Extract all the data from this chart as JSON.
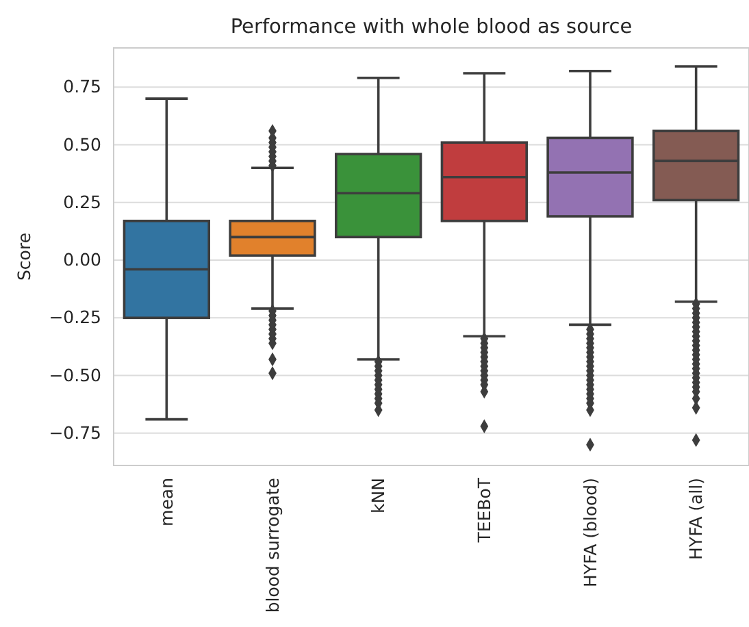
{
  "chart_data": {
    "type": "box",
    "title": "Performance with whole blood as source",
    "ylabel": "Score",
    "categories": [
      "mean",
      "blood surrogate",
      "kNN",
      "TEEBoT",
      "HYFA (blood)",
      "HYFA (all)"
    ],
    "colors": [
      "#3274a1",
      "#e1812c",
      "#3a923a",
      "#c03d3e",
      "#9372b2",
      "#845b53"
    ],
    "boxes": [
      {
        "low": -0.69,
        "q1": -0.25,
        "median": -0.04,
        "q3": 0.17,
        "high": 0.7
      },
      {
        "low": -0.21,
        "q1": 0.02,
        "median": 0.1,
        "q3": 0.17,
        "high": 0.4,
        "outliers": [
          0.41,
          0.43,
          0.45,
          0.47,
          0.49,
          0.51,
          0.53,
          0.56,
          -0.22,
          -0.24,
          -0.26,
          -0.28,
          -0.3,
          -0.32,
          -0.34,
          -0.36,
          -0.43,
          -0.49
        ]
      },
      {
        "low": -0.43,
        "q1": 0.1,
        "median": 0.29,
        "q3": 0.46,
        "high": 0.79,
        "outliers": [
          -0.44,
          -0.46,
          -0.48,
          -0.5,
          -0.52,
          -0.54,
          -0.56,
          -0.58,
          -0.6,
          -0.62,
          -0.65
        ]
      },
      {
        "low": -0.33,
        "q1": 0.17,
        "median": 0.36,
        "q3": 0.51,
        "high": 0.81,
        "outliers": [
          -0.34,
          -0.36,
          -0.38,
          -0.4,
          -0.42,
          -0.44,
          -0.46,
          -0.48,
          -0.5,
          -0.52,
          -0.54,
          -0.57,
          -0.72
        ]
      },
      {
        "low": -0.28,
        "q1": 0.19,
        "median": 0.38,
        "q3": 0.53,
        "high": 0.82,
        "outliers": [
          -0.3,
          -0.32,
          -0.34,
          -0.36,
          -0.38,
          -0.4,
          -0.42,
          -0.44,
          -0.46,
          -0.48,
          -0.5,
          -0.52,
          -0.54,
          -0.56,
          -0.58,
          -0.6,
          -0.62,
          -0.65,
          -0.8
        ]
      },
      {
        "low": -0.18,
        "q1": 0.26,
        "median": 0.43,
        "q3": 0.56,
        "high": 0.84,
        "outliers": [
          -0.19,
          -0.21,
          -0.23,
          -0.25,
          -0.27,
          -0.29,
          -0.31,
          -0.33,
          -0.35,
          -0.37,
          -0.39,
          -0.41,
          -0.43,
          -0.45,
          -0.47,
          -0.49,
          -0.51,
          -0.53,
          -0.55,
          -0.57,
          -0.6,
          -0.64,
          -0.78
        ]
      }
    ],
    "ylim": [
      -0.89,
      0.92
    ],
    "yticks": [
      {
        "value": -0.75,
        "label": "−0.75"
      },
      {
        "value": -0.5,
        "label": "−0.50"
      },
      {
        "value": -0.25,
        "label": "−0.25"
      },
      {
        "value": 0,
        "label": "0.00"
      },
      {
        "value": 0.25,
        "label": "0.25"
      },
      {
        "value": 0.5,
        "label": "0.50"
      },
      {
        "value": 0.75,
        "label": "0.75"
      }
    ],
    "grid": "y",
    "marker": "diamond"
  }
}
